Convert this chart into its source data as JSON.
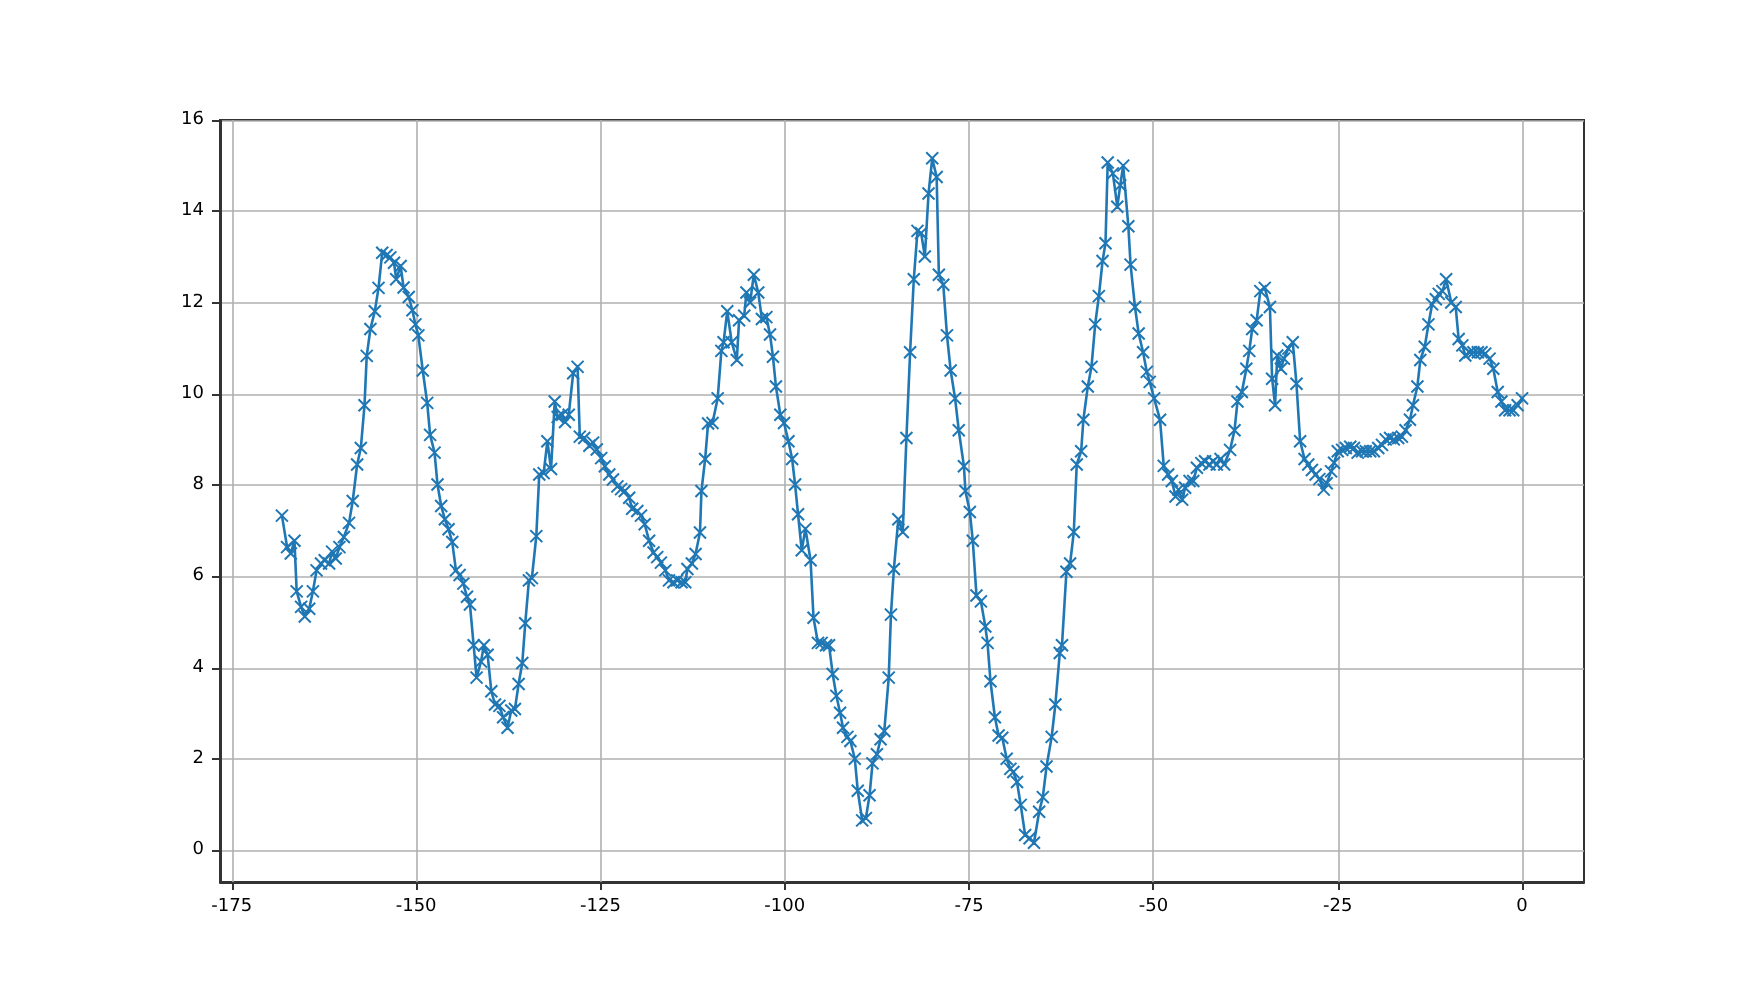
{
  "chart_data": {
    "type": "line",
    "color": "#1f77b4",
    "marker": "cross",
    "line_style": "solid",
    "grid": true,
    "xlim": [
      -176.6,
      8.4
    ],
    "xticks": [
      -175,
      -150,
      -125,
      -100,
      -75,
      -50,
      -25,
      0
    ],
    "ylim": [
      -0.7,
      16
    ],
    "yticks": [
      0,
      2,
      4,
      6,
      8,
      10,
      12,
      14,
      16
    ],
    "x": [
      -168.2,
      -167.5,
      -167,
      -166.5,
      -166.2,
      -165.6,
      -165.1,
      -164.5,
      -164,
      -163.5,
      -162.9,
      -162.4,
      -161.8,
      -161.4,
      -160.9,
      -160.4,
      -159.8,
      -159.1,
      -158.6,
      -158,
      -157.5,
      -157,
      -156.7,
      -156.2,
      -155.6,
      -155.1,
      -154.6,
      -154,
      -153.5,
      -153,
      -152.7,
      -152.1,
      -151.7,
      -151,
      -150.5,
      -150.1,
      -149.7,
      -149.1,
      -148.5,
      -148.1,
      -147.5,
      -147.1,
      -146.6,
      -146.1,
      -145.6,
      -145.1,
      -144.6,
      -144.1,
      -143.6,
      -143.1,
      -142.7,
      -142.2,
      -141.8,
      -141.2,
      -140.8,
      -140.3,
      -139.8,
      -139.3,
      -138.7,
      -138.2,
      -137.6,
      -137.1,
      -136.6,
      -136.1,
      -135.6,
      -135.2,
      -134.7,
      -134.3,
      -133.7,
      -133.3,
      -132.7,
      -132.2,
      -131.7,
      -131.2,
      -130.8,
      -130.2,
      -129.8,
      -129.3,
      -128.7,
      -128.1,
      -127.8,
      -127.2,
      -126.5,
      -126,
      -125.5,
      -124.9,
      -124.4,
      -123.8,
      -123.3,
      -122.7,
      -122.2,
      -121.7,
      -121.1,
      -120.7,
      -120,
      -119.5,
      -119,
      -118.4,
      -117.8,
      -117.3,
      -116.8,
      -116.2,
      -115.7,
      -115.1,
      -114.6,
      -114,
      -113.5,
      -113.2,
      -112.6,
      -112.1,
      -111.5,
      -111.3,
      -110.8,
      -110.4,
      -109.8,
      -109.1,
      -108.6,
      -108.3,
      -107.8,
      -107.2,
      -106.5,
      -106.2,
      -105.5,
      -105.2,
      -104.7,
      -104.2,
      -103.6,
      -103.1,
      -102.5,
      -102,
      -101.6,
      -101.2,
      -100.6,
      -100.1,
      -99.5,
      -99,
      -98.6,
      -98.2,
      -97.7,
      -97.2,
      -96.5,
      -96.1,
      -95.5,
      -95,
      -94.4,
      -94,
      -93.5,
      -93,
      -92.5,
      -92.1,
      -91.5,
      -91.1,
      -90.5,
      -90.1,
      -89.5,
      -89,
      -88.5,
      -88.1,
      -87.5,
      -87,
      -86.5,
      -85.9,
      -85.6,
      -85.2,
      -84.6,
      -84,
      -83.5,
      -83,
      -82.5,
      -82,
      -81.5,
      -81,
      -80.5,
      -80,
      -79.4,
      -79.1,
      -78.5,
      -78,
      -77.5,
      -76.9,
      -76.4,
      -75.7,
      -75.5,
      -74.9,
      -74.5,
      -74,
      -73.4,
      -72.8,
      -72.5,
      -72.1,
      -71.5,
      -71,
      -70.5,
      -69.9,
      -69.4,
      -69,
      -68.5,
      -68,
      -67.4,
      -66.8,
      -66.2,
      -65.5,
      -65,
      -64.5,
      -63.8,
      -63.3,
      -62.7,
      -62.4,
      -61.8,
      -61.3,
      -60.8,
      -60.4,
      -59.8,
      -59.5,
      -58.9,
      -58.4,
      -57.9,
      -57.4,
      -56.9,
      -56.5,
      -56.2,
      -55.5,
      -54.9,
      -54.5,
      -54.1,
      -53.4,
      -53.1,
      -52.5,
      -52,
      -51.4,
      -50.9,
      -50.5,
      -49.9,
      -49.1,
      -48.6,
      -48,
      -47.5,
      -47,
      -46.6,
      -46.1,
      -45.7,
      -45.1,
      -44.6,
      -44.1,
      -43.5,
      -43,
      -42.4,
      -41.9,
      -41.4,
      -40.9,
      -40.4,
      -39.6,
      -39,
      -38.6,
      -38,
      -37.4,
      -37,
      -36.6,
      -36,
      -35.5,
      -34.9,
      -34.2,
      -33.9,
      -33.5,
      -33.2,
      -32.7,
      -32.3,
      -31.7,
      -31.1,
      -30.6,
      -30.1,
      -29.5,
      -29,
      -28.5,
      -28,
      -27.5,
      -26.9,
      -26.5,
      -25.9,
      -25.5,
      -25,
      -24.4,
      -23.9,
      -23.3,
      -22.8,
      -22.3,
      -21.7,
      -21.2,
      -20.6,
      -20.1,
      -19.5,
      -19,
      -18.5,
      -17.9,
      -17.4,
      -16.8,
      -16.3,
      -15.8,
      -15.2,
      -14.8,
      -14.2,
      -13.8,
      -13.2,
      -12.7,
      -12.2,
      -11.7,
      -11.3,
      -10.8,
      -10.3,
      -9.6,
      -9,
      -8.6,
      -8.1,
      -7.7,
      -7.1,
      -6.6,
      -6,
      -5.5,
      -5,
      -4.4,
      -3.9,
      -3.3,
      -2.8,
      -2.3,
      -1.7,
      -1.2,
      -0.6,
      0
    ],
    "values": [
      7.33,
      6.64,
      6.5,
      6.78,
      5.67,
      5.33,
      5.12,
      5.29,
      5.67,
      6.13,
      6.28,
      6.35,
      6.28,
      6.54,
      6.39,
      6.64,
      6.86,
      7.17,
      7.65,
      8.45,
      8.81,
      9.75,
      10.83,
      11.42,
      11.81,
      12.32,
      13.09,
      13.04,
      12.99,
      12.87,
      12.51,
      12.8,
      12.33,
      12.12,
      11.83,
      11.52,
      11.28,
      10.51,
      9.8,
      9.1,
      8.71,
      8.01,
      7.54,
      7.25,
      7.03,
      6.75,
      6.13,
      6.03,
      5.84,
      5.55,
      5.38,
      4.49,
      3.78,
      4.13,
      4.49,
      4.28,
      3.48,
      3.19,
      3.16,
      2.91,
      2.68,
      3.06,
      3.09,
      3.64,
      4.1,
      4.97,
      5.91,
      5.96,
      6.88,
      8.23,
      8.26,
      8.96,
      8.35,
      9.83,
      9.49,
      9.54,
      9.38,
      9.54,
      10.45,
      10.59,
      9.06,
      9.03,
      8.86,
      8.93,
      8.78,
      8.59,
      8.41,
      8.23,
      8.12,
      7.97,
      7.91,
      7.87,
      7.72,
      7.48,
      7.43,
      7.33,
      7.14,
      6.78,
      6.52,
      6.42,
      6.3,
      6.13,
      5.91,
      5.87,
      5.91,
      5.87,
      5.87,
      6.16,
      6.28,
      6.49,
      6.96,
      7.87,
      8.57,
      9.35,
      9.36,
      9.9,
      10.94,
      11.13,
      11.81,
      11.13,
      10.74,
      11.61,
      11.71,
      12.22,
      12,
      12.61,
      12.22,
      11.64,
      11.68,
      11.3,
      10.81,
      10.16,
      9.54,
      9.36,
      8.96,
      8.57,
      8.01,
      7.36,
      6.57,
      7.04,
      6.35,
      5.09,
      4.54,
      4.54,
      4.49,
      4.49,
      3.86,
      3.38,
      3.01,
      2.68,
      2.48,
      2.39,
      2,
      1.3,
      0.65,
      0.7,
      1.2,
      1.9,
      2.1,
      2.43,
      2.61,
      3.78,
      5.16,
      6.16,
      7.25,
      6.97,
      9.03,
      10.91,
      12.51,
      13.57,
      13.52,
      13.01,
      14.39,
      15.16,
      14.75,
      12.61,
      12.39,
      11.28,
      10.51,
      9.9,
      9.2,
      8.41,
      7.87,
      7.41,
      6.78,
      5.58,
      5.45,
      4.9,
      4.54,
      3.7,
      2.91,
      2.51,
      2.46,
      2,
      1.78,
      1.71,
      1.49,
      0.99,
      0.33,
      0.26,
      0.16,
      0.84,
      1.16,
      1.83,
      2.48,
      3.19,
      4.32,
      4.49,
      6.1,
      6.28,
      6.97,
      8.45,
      8.74,
      9.43,
      10.16,
      10.59,
      11.52,
      12.14,
      12.91,
      13.3,
      15.07,
      14.83,
      14.1,
      14.57,
      15,
      13.67,
      12.83,
      11.9,
      11.32,
      10.91,
      10.48,
      10.26,
      9.9,
      9.43,
      8.42,
      8.23,
      8.09,
      7.75,
      7.9,
      7.68,
      7.94,
      8.09,
      8.09,
      8.38,
      8.48,
      8.52,
      8.45,
      8.52,
      8.45,
      8.57,
      8.45,
      8.77,
      9.2,
      9.83,
      10.04,
      10.55,
      10.94,
      11.42,
      11.61,
      12.25,
      12.32,
      11.9,
      10.33,
      9.75,
      10.84,
      10.55,
      10.77,
      10.99,
      11.13,
      10.22,
      8.96,
      8.57,
      8.45,
      8.33,
      8.23,
      8.13,
      7.9,
      8.04,
      8.3,
      8.49,
      8.74,
      8.77,
      8.81,
      8.84,
      8.81,
      8.71,
      8.74,
      8.74,
      8.74,
      8.74,
      8.81,
      8.88,
      9,
      9.03,
      9,
      9.03,
      9.06,
      9.2,
      9.43,
      9.75,
      10.16,
      10.74,
      11.03,
      11.52,
      11.96,
      12.07,
      12.19,
      12.25,
      12.51,
      12,
      11.9,
      11.2,
      11.06,
      10.84,
      10.91,
      10.91,
      10.91,
      10.91,
      10.88,
      10.77,
      10.55,
      10.04,
      9.83,
      9.64,
      9.64,
      9.64,
      9.75,
      9.9
    ]
  }
}
